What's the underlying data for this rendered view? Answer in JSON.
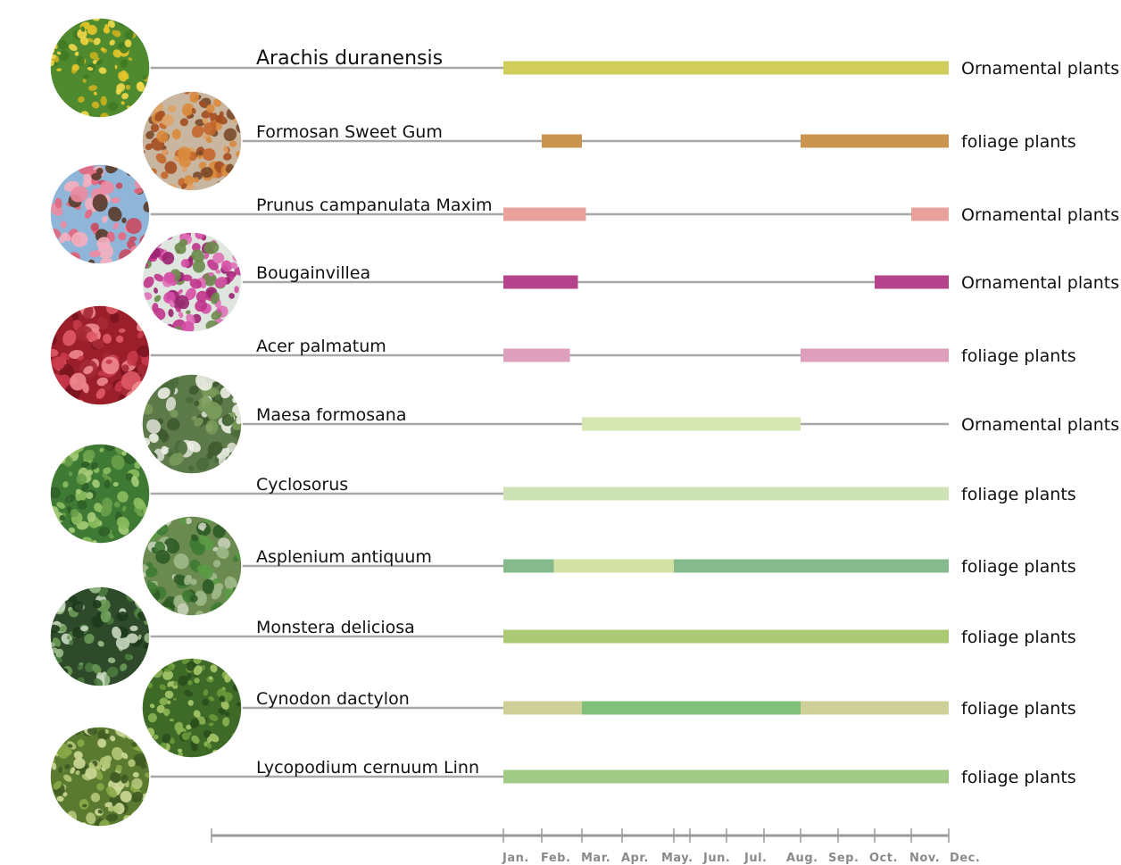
{
  "chart_data": {
    "type": "gantt",
    "title": "",
    "months": [
      "Jan.",
      "Feb.",
      "Mar.",
      "Apr.",
      "May.",
      "Jun.",
      "Jul.",
      "Aug.",
      "Sep.",
      "Oct.",
      "Nov.",
      "Dec."
    ],
    "rows": [
      {
        "name": "Arachis duranensis",
        "category": "Ornamental plants",
        "thumb": "yellow-flower-field",
        "segments": [
          {
            "start": 1,
            "end": 12,
            "color": "#d1cd5a"
          }
        ]
      },
      {
        "name": "Formosan Sweet Gum",
        "category": "foliage plants",
        "thumb": "autumn-tree",
        "segments": [
          {
            "start": 2,
            "end": 3,
            "color": "#c99450"
          },
          {
            "start": 8,
            "end": 12,
            "color": "#c99450"
          }
        ]
      },
      {
        "name": "Prunus campanulata Maxim",
        "category": "Ornamental plants",
        "thumb": "pink-blossom",
        "segments": [
          {
            "start": 1,
            "end": 3.1,
            "color": "#eaa19b"
          },
          {
            "start": 11,
            "end": 12,
            "color": "#eaa19b"
          }
        ]
      },
      {
        "name": "Bougainvillea",
        "category": "Ornamental plants",
        "thumb": "magenta-tree",
        "segments": [
          {
            "start": 1,
            "end": 2.9,
            "color": "#b5438b"
          },
          {
            "start": 10,
            "end": 12,
            "color": "#b5438b"
          }
        ]
      },
      {
        "name": "Acer palmatum",
        "category": "foliage plants",
        "thumb": "red-maple",
        "segments": [
          {
            "start": 1,
            "end": 2.7,
            "color": "#dd9fbb"
          },
          {
            "start": 8,
            "end": 12,
            "color": "#dd9fbb"
          }
        ]
      },
      {
        "name": "Maesa formosana",
        "category": "Ornamental plants",
        "thumb": "white-flower-shrub",
        "segments": [
          {
            "start": 3,
            "end": 8,
            "color": "#d6e6b1"
          }
        ]
      },
      {
        "name": "Cyclosorus",
        "category": "foliage plants",
        "thumb": "fern",
        "segments": [
          {
            "start": 1,
            "end": 12,
            "color": "#cde2b5"
          }
        ]
      },
      {
        "name": "Asplenium antiquum",
        "category": "foliage plants",
        "thumb": "birds-nest-fern",
        "segments": [
          {
            "start": 1,
            "end": 2.3,
            "color": "#86b98c"
          },
          {
            "start": 2.3,
            "end": 5,
            "color": "#d3e1a5"
          },
          {
            "start": 5,
            "end": 12,
            "color": "#86b98c"
          }
        ]
      },
      {
        "name": "Monstera deliciosa",
        "category": "foliage plants",
        "thumb": "monstera-leaves",
        "segments": [
          {
            "start": 1,
            "end": 12,
            "color": "#acca73"
          }
        ]
      },
      {
        "name": "Cynodon dactylon",
        "category": "foliage plants",
        "thumb": "grass",
        "segments": [
          {
            "start": 1,
            "end": 3,
            "color": "#cfcf98"
          },
          {
            "start": 3,
            "end": 8,
            "color": "#80c07b"
          },
          {
            "start": 8,
            "end": 12,
            "color": "#cfcf98"
          }
        ]
      },
      {
        "name": "Lycopodium cernuum Linn",
        "category": "foliage plants",
        "thumb": "clubmoss",
        "segments": [
          {
            "start": 1,
            "end": 12,
            "color": "#a0ca85"
          }
        ]
      }
    ],
    "colors": {
      "guide_line": "#a8a8a8",
      "axis": "#9a9a9a"
    }
  }
}
